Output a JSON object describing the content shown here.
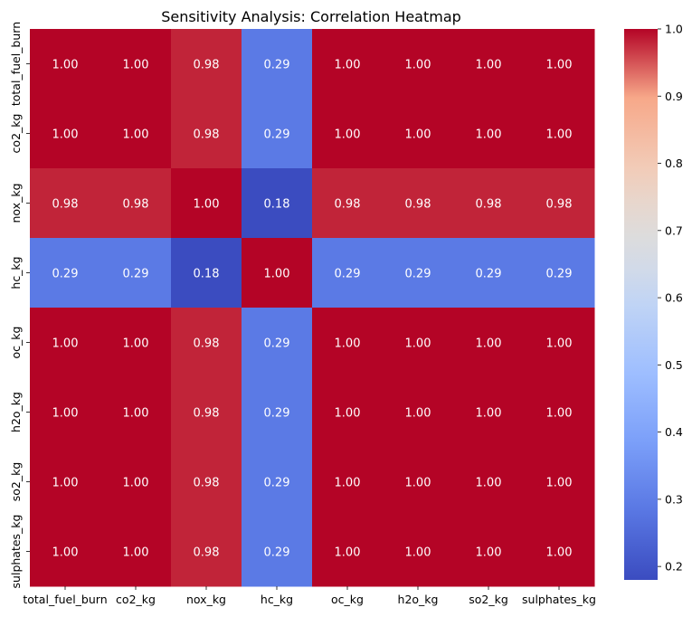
{
  "chart_data": {
    "type": "heatmap",
    "title": "Sensitivity Analysis: Correlation Heatmap",
    "xlabel": "",
    "ylabel": "",
    "x_categories": [
      "total_fuel_burn",
      "co2_kg",
      "nox_kg",
      "hc_kg",
      "oc_kg",
      "h2o_kg",
      "so2_kg",
      "sulphates_kg"
    ],
    "y_categories": [
      "total_fuel_burn",
      "co2_kg",
      "nox_kg",
      "hc_kg",
      "oc_kg",
      "h2o_kg",
      "so2_kg",
      "sulphates_kg"
    ],
    "values": [
      [
        1.0,
        1.0,
        0.98,
        0.29,
        1.0,
        1.0,
        1.0,
        1.0
      ],
      [
        1.0,
        1.0,
        0.98,
        0.29,
        1.0,
        1.0,
        1.0,
        1.0
      ],
      [
        0.98,
        0.98,
        1.0,
        0.18,
        0.98,
        0.98,
        0.98,
        0.98
      ],
      [
        0.29,
        0.29,
        0.18,
        1.0,
        0.29,
        0.29,
        0.29,
        0.29
      ],
      [
        1.0,
        1.0,
        0.98,
        0.29,
        1.0,
        1.0,
        1.0,
        1.0
      ],
      [
        1.0,
        1.0,
        0.98,
        0.29,
        1.0,
        1.0,
        1.0,
        1.0
      ],
      [
        1.0,
        1.0,
        0.98,
        0.29,
        1.0,
        1.0,
        1.0,
        1.0
      ],
      [
        1.0,
        1.0,
        0.98,
        0.29,
        1.0,
        1.0,
        1.0,
        1.0
      ]
    ],
    "annotation_format": "0.00",
    "colormap": "coolwarm",
    "colorbar": {
      "range": [
        0.18,
        1.0
      ],
      "ticks": [
        "0.2",
        "0.3",
        "0.4",
        "0.5",
        "0.6",
        "0.7",
        "0.8",
        "0.9",
        "1.0"
      ]
    },
    "grid": false,
    "legend": "colorbar-right"
  }
}
